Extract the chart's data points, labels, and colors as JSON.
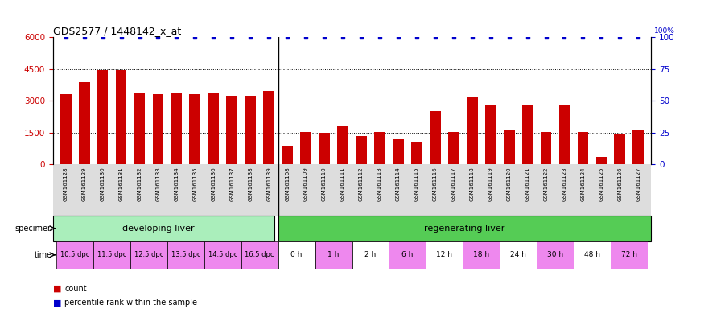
{
  "title": "GDS2577 / 1448142_x_at",
  "samples": [
    "GSM161128",
    "GSM161129",
    "GSM161130",
    "GSM161131",
    "GSM161132",
    "GSM161133",
    "GSM161134",
    "GSM161135",
    "GSM161136",
    "GSM161137",
    "GSM161138",
    "GSM161139",
    "GSM161108",
    "GSM161109",
    "GSM161110",
    "GSM161111",
    "GSM161112",
    "GSM161113",
    "GSM161114",
    "GSM161115",
    "GSM161116",
    "GSM161117",
    "GSM161118",
    "GSM161119",
    "GSM161120",
    "GSM161121",
    "GSM161122",
    "GSM161123",
    "GSM161124",
    "GSM161125",
    "GSM161126",
    "GSM161127"
  ],
  "counts": [
    3300,
    3900,
    4450,
    4450,
    3350,
    3300,
    3350,
    3300,
    3350,
    3250,
    3250,
    3450,
    900,
    1550,
    1500,
    1800,
    1350,
    1550,
    1200,
    1050,
    2500,
    1550,
    3200,
    2800,
    1650,
    2800,
    1550,
    2800,
    1550,
    350,
    1450,
    1600
  ],
  "percentile_ranks": [
    100,
    100,
    100,
    100,
    100,
    100,
    100,
    100,
    100,
    100,
    100,
    100,
    100,
    100,
    100,
    100,
    100,
    100,
    100,
    100,
    100,
    100,
    100,
    100,
    100,
    100,
    100,
    100,
    100,
    100,
    100,
    100
  ],
  "bar_color": "#cc0000",
  "dot_color": "#0000cc",
  "ylim_left": [
    0,
    6000
  ],
  "ylim_right": [
    0,
    100
  ],
  "yticks_left": [
    0,
    1500,
    3000,
    4500,
    6000
  ],
  "yticks_right": [
    0,
    25,
    50,
    75,
    100
  ],
  "time_labels_dev": [
    "10.5 dpc",
    "11.5 dpc",
    "12.5 dpc",
    "13.5 dpc",
    "14.5 dpc",
    "16.5 dpc"
  ],
  "time_labels_reg": [
    "0 h",
    "1 h",
    "2 h",
    "6 h",
    "12 h",
    "18 h",
    "24 h",
    "30 h",
    "48 h",
    "72 h"
  ],
  "time_color_dev": "#ee88ee",
  "time_color_reg": "#ffffff",
  "dev_sample_counts": [
    2,
    2,
    2,
    2,
    2,
    2
  ],
  "reg_sample_counts": [
    2,
    2,
    2,
    2,
    2,
    2,
    2,
    2,
    2,
    2
  ],
  "spec_dev_color": "#aaeebb",
  "spec_reg_color": "#55cc55",
  "legend_count_color": "#cc0000",
  "legend_pct_color": "#0000cc",
  "xtick_bg": "#dddddd",
  "n_dev": 12,
  "n_total": 32
}
